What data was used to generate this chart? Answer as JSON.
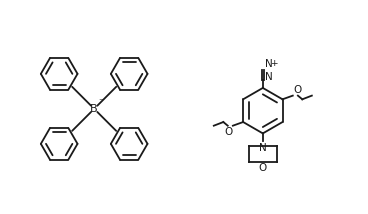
{
  "bg_color": "#ffffff",
  "line_color": "#1a1a1a",
  "line_width": 1.3,
  "figsize": [
    3.68,
    2.14
  ],
  "dpi": 100,
  "xlim": [
    0,
    10
  ],
  "ylim": [
    0,
    5.5
  ]
}
